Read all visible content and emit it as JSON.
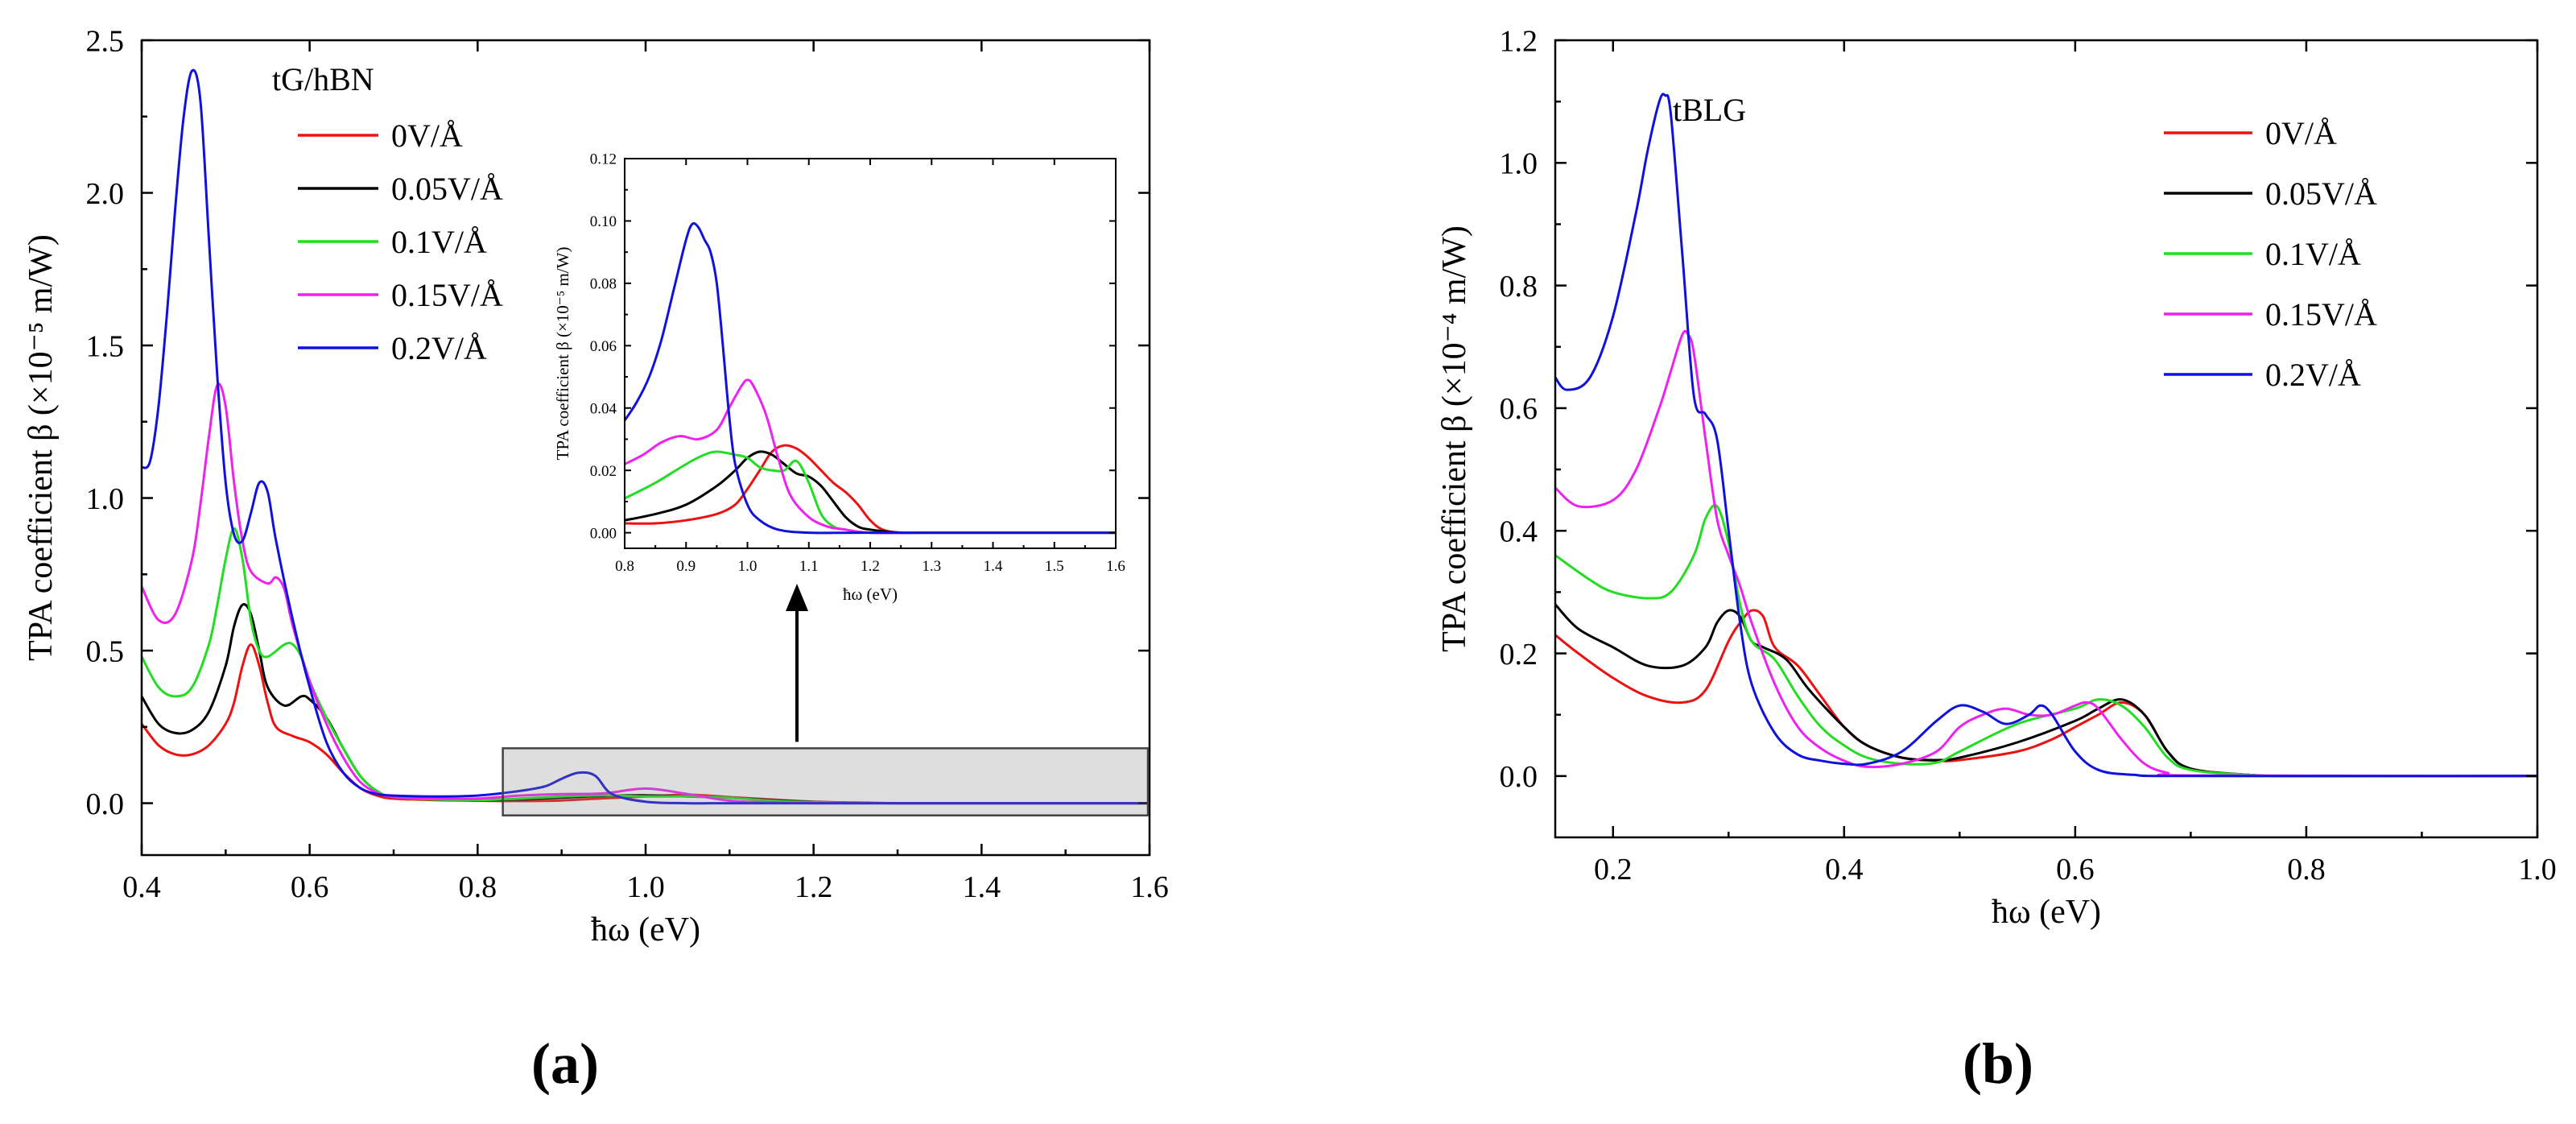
{
  "figure": {
    "panel_letters": [
      "a",
      "b"
    ]
  },
  "chart_data": [
    {
      "id": "panel-a",
      "type": "line",
      "title": "tG/hBN",
      "xlabel": "ħω (eV)",
      "ylabel": "TPA coefficient β (×10⁻⁵ m/W)",
      "xlim": [
        0.4,
        1.6
      ],
      "ylim": [
        -0.17,
        2.5
      ],
      "xticks": [
        "0.4",
        "0.6",
        "0.8",
        "1.0",
        "1.2",
        "1.4",
        "1.6"
      ],
      "yticks": [
        "0.0",
        "0.5",
        "1.0",
        "1.5",
        "2.0",
        "2.5"
      ],
      "legend_position": "top-left",
      "series": [
        {
          "name": "0V/Å",
          "color": "#ee1111",
          "x": [
            0.4,
            0.42,
            0.44,
            0.46,
            0.48,
            0.5,
            0.51,
            0.52,
            0.53,
            0.54,
            0.55,
            0.56,
            0.58,
            0.6,
            0.62,
            0.64,
            0.66,
            0.68,
            0.7,
            0.75,
            0.8,
            0.85,
            0.9,
            0.95,
            1.0,
            1.05,
            1.1,
            1.15,
            1.2,
            1.25,
            1.3,
            1.4,
            1.6
          ],
          "y": [
            0.26,
            0.19,
            0.16,
            0.16,
            0.19,
            0.26,
            0.33,
            0.45,
            0.52,
            0.45,
            0.33,
            0.25,
            0.22,
            0.2,
            0.16,
            0.1,
            0.05,
            0.025,
            0.015,
            0.01,
            0.008,
            0.007,
            0.009,
            0.016,
            0.022,
            0.028,
            0.02,
            0.012,
            0.005,
            0.002,
            0.0,
            0.0,
            0.0
          ]
        },
        {
          "name": "0.05V/Å",
          "color": "#000000",
          "x": [
            0.4,
            0.42,
            0.44,
            0.46,
            0.48,
            0.5,
            0.51,
            0.52,
            0.53,
            0.54,
            0.55,
            0.57,
            0.59,
            0.6,
            0.62,
            0.64,
            0.66,
            0.68,
            0.7,
            0.75,
            0.8,
            0.85,
            0.9,
            0.95,
            1.0,
            1.05,
            1.1,
            1.15,
            1.2,
            1.25,
            1.3,
            1.4,
            1.6
          ],
          "y": [
            0.35,
            0.26,
            0.23,
            0.24,
            0.3,
            0.45,
            0.58,
            0.65,
            0.62,
            0.5,
            0.38,
            0.32,
            0.35,
            0.34,
            0.28,
            0.18,
            0.09,
            0.04,
            0.02,
            0.012,
            0.01,
            0.012,
            0.018,
            0.024,
            0.026,
            0.022,
            0.018,
            0.01,
            0.004,
            0.001,
            0.0,
            0.0,
            0.0
          ]
        },
        {
          "name": "0.1V/Å",
          "color": "#22dd22",
          "x": [
            0.4,
            0.42,
            0.44,
            0.46,
            0.48,
            0.49,
            0.5,
            0.51,
            0.52,
            0.53,
            0.54,
            0.55,
            0.57,
            0.58,
            0.59,
            0.6,
            0.62,
            0.64,
            0.66,
            0.68,
            0.7,
            0.75,
            0.8,
            0.85,
            0.9,
            0.95,
            1.0,
            1.05,
            1.1,
            1.15,
            1.2,
            1.3,
            1.6
          ],
          "y": [
            0.48,
            0.38,
            0.35,
            0.38,
            0.52,
            0.65,
            0.8,
            0.9,
            0.8,
            0.6,
            0.5,
            0.48,
            0.52,
            0.52,
            0.48,
            0.4,
            0.28,
            0.18,
            0.09,
            0.04,
            0.02,
            0.012,
            0.01,
            0.015,
            0.022,
            0.026,
            0.022,
            0.022,
            0.018,
            0.008,
            0.003,
            0.0,
            0.0
          ]
        },
        {
          "name": "0.15V/Å",
          "color": "#ee22ee",
          "x": [
            0.4,
            0.42,
            0.44,
            0.46,
            0.47,
            0.48,
            0.49,
            0.5,
            0.51,
            0.52,
            0.53,
            0.55,
            0.56,
            0.57,
            0.58,
            0.6,
            0.62,
            0.64,
            0.66,
            0.68,
            0.7,
            0.75,
            0.8,
            0.85,
            0.9,
            0.95,
            1.0,
            1.05,
            1.1,
            1.15,
            1.2,
            1.3,
            1.6
          ],
          "y": [
            0.71,
            0.6,
            0.62,
            0.8,
            0.98,
            1.2,
            1.37,
            1.3,
            1.05,
            0.86,
            0.76,
            0.72,
            0.74,
            0.7,
            0.58,
            0.4,
            0.26,
            0.15,
            0.07,
            0.035,
            0.02,
            0.015,
            0.015,
            0.025,
            0.03,
            0.032,
            0.048,
            0.03,
            0.008,
            0.003,
            0.0,
            0.0,
            0.0
          ]
        },
        {
          "name": "0.2V/Å",
          "color": "#1111dd",
          "x": [
            0.4,
            0.41,
            0.42,
            0.43,
            0.44,
            0.45,
            0.46,
            0.47,
            0.48,
            0.49,
            0.5,
            0.51,
            0.52,
            0.53,
            0.54,
            0.55,
            0.56,
            0.58,
            0.6,
            0.62,
            0.64,
            0.66,
            0.68,
            0.7,
            0.75,
            0.8,
            0.85,
            0.88,
            0.9,
            0.92,
            0.94,
            0.96,
            1.0,
            1.05,
            1.1,
            1.2,
            1.6
          ],
          "y": [
            1.1,
            1.12,
            1.3,
            1.6,
            1.95,
            2.25,
            2.4,
            2.3,
            1.85,
            1.4,
            1.05,
            0.88,
            0.86,
            0.95,
            1.05,
            1.02,
            0.86,
            0.6,
            0.38,
            0.2,
            0.1,
            0.05,
            0.03,
            0.025,
            0.022,
            0.025,
            0.04,
            0.055,
            0.08,
            0.1,
            0.09,
            0.03,
            0.005,
            0.0,
            0.0,
            0.0,
            0.0
          ]
        }
      ],
      "inset": {
        "xlabel": "ħω (eV)",
        "ylabel": "TPA coefficient β (×10⁻⁵ m/W)",
        "xlim": [
          0.8,
          1.6
        ],
        "ylim": [
          -0.005,
          0.12
        ],
        "xticks": [
          "0.8",
          "0.9",
          "1.0",
          "1.1",
          "1.2",
          "1.3",
          "1.4",
          "1.5",
          "1.6"
        ],
        "yticks": [
          "0.00",
          "0.02",
          "0.04",
          "0.06",
          "0.08",
          "0.10",
          "0.12"
        ],
        "series": [
          {
            "name": "0V/Å",
            "color": "#ee1111",
            "x": [
              0.8,
              0.85,
              0.9,
              0.95,
              0.98,
              1.0,
              1.02,
              1.04,
              1.06,
              1.08,
              1.1,
              1.12,
              1.14,
              1.16,
              1.18,
              1.2,
              1.22,
              1.25,
              1.3,
              1.6
            ],
            "y": [
              0.003,
              0.003,
              0.004,
              0.006,
              0.009,
              0.014,
              0.02,
              0.026,
              0.028,
              0.027,
              0.024,
              0.02,
              0.016,
              0.013,
              0.009,
              0.004,
              0.001,
              0.0,
              0.0,
              0.0
            ]
          },
          {
            "name": "0.05V/Å",
            "color": "#000000",
            "x": [
              0.8,
              0.85,
              0.9,
              0.95,
              0.98,
              1.0,
              1.02,
              1.04,
              1.06,
              1.08,
              1.1,
              1.12,
              1.14,
              1.16,
              1.18,
              1.2,
              1.25,
              1.3,
              1.6
            ],
            "y": [
              0.004,
              0.006,
              0.009,
              0.015,
              0.02,
              0.024,
              0.026,
              0.025,
              0.022,
              0.019,
              0.018,
              0.015,
              0.01,
              0.005,
              0.002,
              0.001,
              0.0,
              0.0,
              0.0
            ]
          },
          {
            "name": "0.1V/Å",
            "color": "#22dd22",
            "x": [
              0.8,
              0.85,
              0.9,
              0.93,
              0.95,
              0.98,
              1.0,
              1.02,
              1.04,
              1.06,
              1.08,
              1.1,
              1.12,
              1.14,
              1.16,
              1.2,
              1.3,
              1.6
            ],
            "y": [
              0.011,
              0.016,
              0.022,
              0.025,
              0.026,
              0.025,
              0.024,
              0.021,
              0.02,
              0.02,
              0.023,
              0.016,
              0.006,
              0.002,
              0.001,
              0.0,
              0.0,
              0.0
            ]
          },
          {
            "name": "0.15V/Å",
            "color": "#ee22ee",
            "x": [
              0.8,
              0.83,
              0.86,
              0.89,
              0.92,
              0.95,
              0.97,
              0.99,
              1.0,
              1.01,
              1.03,
              1.05,
              1.07,
              1.1,
              1.13,
              1.16,
              1.2,
              1.3,
              1.6
            ],
            "y": [
              0.022,
              0.025,
              0.029,
              0.031,
              0.03,
              0.033,
              0.04,
              0.047,
              0.049,
              0.047,
              0.038,
              0.024,
              0.012,
              0.005,
              0.002,
              0.001,
              0.0,
              0.0,
              0.0
            ]
          },
          {
            "name": "0.2V/Å",
            "color": "#1111dd",
            "x": [
              0.8,
              0.82,
              0.84,
              0.86,
              0.88,
              0.9,
              0.91,
              0.92,
              0.93,
              0.94,
              0.95,
              0.96,
              0.97,
              0.98,
              1.0,
              1.02,
              1.05,
              1.1,
              1.2,
              1.6
            ],
            "y": [
              0.036,
              0.042,
              0.05,
              0.062,
              0.078,
              0.094,
              0.099,
              0.098,
              0.094,
              0.09,
              0.08,
              0.06,
              0.038,
              0.022,
              0.009,
              0.004,
              0.001,
              0.0,
              0.0,
              0.0
            ]
          }
        ]
      }
    },
    {
      "id": "panel-b",
      "type": "line",
      "title": "tBLG",
      "xlabel": "ħω (eV)",
      "ylabel": "TPA coefficient β (×10⁻⁴ m/W)",
      "xlim": [
        0.15,
        1.0
      ],
      "ylim": [
        -0.1,
        1.2
      ],
      "xticks": [
        "0.2",
        "0.4",
        "0.6",
        "0.8",
        "1.0"
      ],
      "yticks": [
        "0.0",
        "0.2",
        "0.4",
        "0.6",
        "0.8",
        "1.0",
        "1.2"
      ],
      "legend_position": "top-right",
      "series": [
        {
          "name": "0V/Å",
          "color": "#ee1111",
          "x": [
            0.15,
            0.17,
            0.2,
            0.23,
            0.26,
            0.28,
            0.3,
            0.31,
            0.32,
            0.33,
            0.34,
            0.36,
            0.38,
            0.4,
            0.42,
            0.45,
            0.48,
            0.5,
            0.55,
            0.58,
            0.6,
            0.62,
            0.64,
            0.66,
            0.68,
            0.7,
            0.75,
            0.8,
            1.0
          ],
          "y": [
            0.23,
            0.2,
            0.16,
            0.13,
            0.12,
            0.14,
            0.22,
            0.25,
            0.27,
            0.26,
            0.21,
            0.18,
            0.13,
            0.08,
            0.05,
            0.03,
            0.025,
            0.026,
            0.04,
            0.06,
            0.08,
            0.1,
            0.12,
            0.1,
            0.04,
            0.012,
            0.002,
            0.0,
            0.0
          ]
        },
        {
          "name": "0.05V/Å",
          "color": "#000000",
          "x": [
            0.15,
            0.17,
            0.2,
            0.23,
            0.26,
            0.28,
            0.29,
            0.3,
            0.31,
            0.32,
            0.33,
            0.35,
            0.37,
            0.4,
            0.42,
            0.45,
            0.48,
            0.5,
            0.55,
            0.6,
            0.62,
            0.64,
            0.66,
            0.68,
            0.7,
            0.75,
            0.8,
            1.0
          ],
          "y": [
            0.28,
            0.24,
            0.21,
            0.18,
            0.18,
            0.21,
            0.25,
            0.27,
            0.26,
            0.22,
            0.21,
            0.19,
            0.14,
            0.08,
            0.05,
            0.03,
            0.026,
            0.03,
            0.055,
            0.09,
            0.11,
            0.125,
            0.1,
            0.04,
            0.012,
            0.002,
            0.0,
            0.0
          ]
        },
        {
          "name": "0.1V/Å",
          "color": "#22dd22",
          "x": [
            0.15,
            0.18,
            0.2,
            0.23,
            0.25,
            0.27,
            0.28,
            0.29,
            0.3,
            0.31,
            0.32,
            0.34,
            0.36,
            0.38,
            0.4,
            0.42,
            0.45,
            0.48,
            0.5,
            0.55,
            0.6,
            0.62,
            0.64,
            0.66,
            0.68,
            0.7,
            0.75,
            0.8,
            1.0
          ],
          "y": [
            0.36,
            0.32,
            0.3,
            0.29,
            0.3,
            0.36,
            0.42,
            0.44,
            0.38,
            0.28,
            0.22,
            0.19,
            0.13,
            0.08,
            0.05,
            0.03,
            0.02,
            0.022,
            0.04,
            0.085,
            0.11,
            0.125,
            0.115,
            0.08,
            0.03,
            0.01,
            0.002,
            0.0,
            0.0
          ]
        },
        {
          "name": "0.15V/Å",
          "color": "#ee22ee",
          "x": [
            0.15,
            0.17,
            0.2,
            0.22,
            0.24,
            0.25,
            0.26,
            0.265,
            0.27,
            0.28,
            0.29,
            0.3,
            0.31,
            0.32,
            0.34,
            0.36,
            0.38,
            0.4,
            0.42,
            0.45,
            0.48,
            0.5,
            0.52,
            0.54,
            0.56,
            0.58,
            0.6,
            0.61,
            0.62,
            0.64,
            0.66,
            0.68,
            0.7,
            1.0
          ],
          "y": [
            0.47,
            0.44,
            0.45,
            0.5,
            0.6,
            0.66,
            0.72,
            0.72,
            0.69,
            0.55,
            0.42,
            0.36,
            0.31,
            0.25,
            0.15,
            0.08,
            0.045,
            0.025,
            0.015,
            0.02,
            0.04,
            0.08,
            0.1,
            0.11,
            0.1,
            0.1,
            0.115,
            0.12,
            0.11,
            0.06,
            0.02,
            0.005,
            0.001,
            0.0
          ]
        },
        {
          "name": "0.2V/Å",
          "color": "#1111dd",
          "x": [
            0.15,
            0.16,
            0.18,
            0.2,
            0.22,
            0.23,
            0.24,
            0.245,
            0.25,
            0.26,
            0.27,
            0.28,
            0.29,
            0.3,
            0.31,
            0.32,
            0.34,
            0.36,
            0.38,
            0.4,
            0.42,
            0.45,
            0.48,
            0.5,
            0.52,
            0.54,
            0.56,
            0.57,
            0.58,
            0.6,
            0.62,
            0.65,
            0.7,
            1.0
          ],
          "y": [
            0.65,
            0.63,
            0.65,
            0.75,
            0.92,
            1.02,
            1.1,
            1.11,
            1.08,
            0.85,
            0.62,
            0.59,
            0.55,
            0.4,
            0.25,
            0.15,
            0.07,
            0.035,
            0.025,
            0.02,
            0.02,
            0.04,
            0.09,
            0.115,
            0.105,
            0.085,
            0.1,
            0.115,
            0.1,
            0.04,
            0.01,
            0.002,
            0.0,
            0.0
          ]
        }
      ]
    }
  ]
}
